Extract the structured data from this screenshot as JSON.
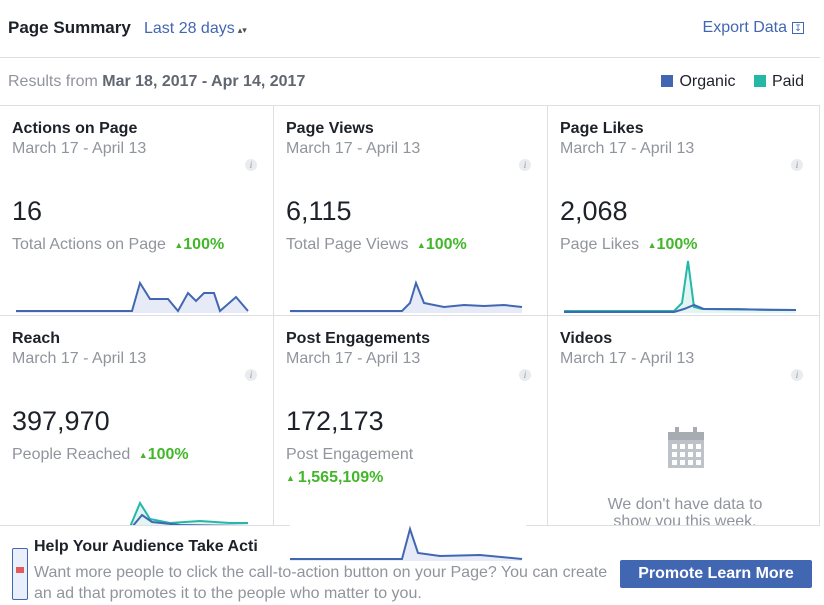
{
  "header": {
    "title": "Page Summary",
    "range_label": "Last 28 days",
    "range_arrows": "▴▾",
    "export_label": "Export Data",
    "export_icon": "download-icon"
  },
  "results": {
    "prefix": "Results from",
    "range": "Mar 18, 2017 - Apr 14, 2017"
  },
  "legend": [
    {
      "label": "Organic",
      "color": "#4267b2"
    },
    {
      "label": "Paid",
      "color": "#23b8a8"
    }
  ],
  "cards": [
    {
      "title": "Actions on Page",
      "date": "March 17 - April 13",
      "value": "16",
      "sub": "Total Actions on Page",
      "pct": "100%",
      "info": "i"
    },
    {
      "title": "Page Views",
      "date": "March 17 - April 13",
      "value": "6,115",
      "sub": "Total Page Views",
      "pct": "100%",
      "info": "i"
    },
    {
      "title": "Page Likes",
      "date": "March 17 - April 13",
      "value": "2,068",
      "sub": "Page Likes",
      "pct": "100%",
      "info": "i"
    },
    {
      "title": "Reach",
      "date": "March 17 - April 13",
      "value": "397,970",
      "sub": "People Reached",
      "pct": "100%",
      "info": "i"
    },
    {
      "title": "Post Engagements",
      "date": "March 17 - April 13",
      "value": "172,173",
      "sub": "Post Engagement",
      "pct": "1,565,109%",
      "info": "i"
    },
    {
      "title": "Videos",
      "date": "March 17 - April 13",
      "no_data_1": "We don't have data to",
      "no_data_2": "show you this week.",
      "info": "i",
      "icon": "calendar-icon"
    }
  ],
  "promo": {
    "title": "Help Your Audience Take Acti",
    "text": "Want more people to click the call-to-action button on your Page? You can create an ad that promotes it to the people who matter to you.",
    "button": "Promote Learn More",
    "thumb_icon": "phone-thumbnail-icon"
  },
  "colors": {
    "organic": "#4267b2",
    "paid": "#23b8a8",
    "positive": "#42b72a"
  }
}
